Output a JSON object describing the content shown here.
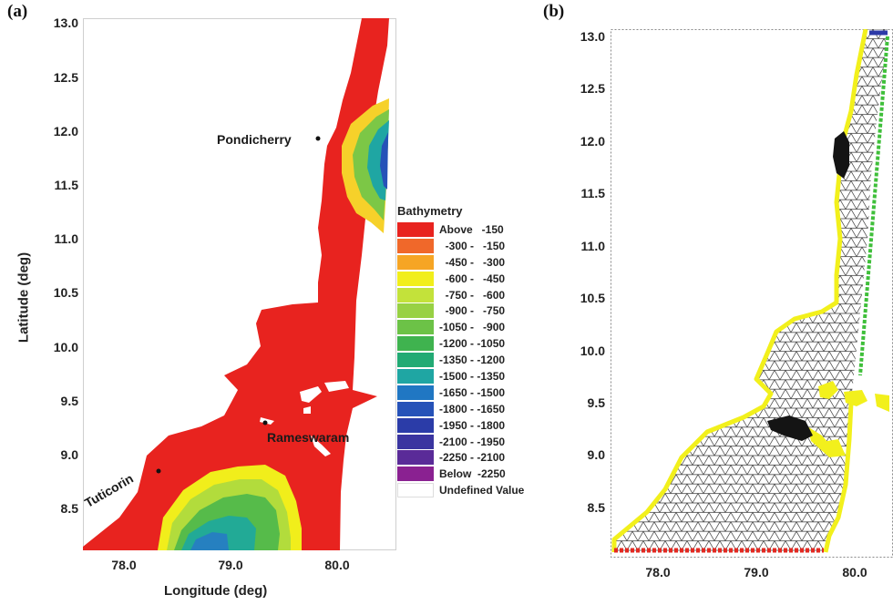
{
  "panel_a": {
    "label": "(a)",
    "y_ticks": [
      "13.0",
      "12.5",
      "12.0",
      "11.5",
      "11.0",
      "10.5",
      "10.0",
      "9.5",
      "9.0",
      "8.5"
    ],
    "x_ticks": [
      "78.0",
      "79.0",
      "80.0"
    ],
    "y_title": "Latitude (deg)",
    "x_title": "Longitude (deg)",
    "places": {
      "pondicherry": "Pondicherry",
      "rameswaram": "Rameswaram",
      "tuticorin": "Tuticorin"
    }
  },
  "legend": {
    "title": "Bathymetry",
    "items": [
      {
        "label": "Above   -150",
        "color": "#e8231f"
      },
      {
        "label": "  -300 -   -150",
        "color": "#f0682a"
      },
      {
        "label": "  -450 -   -300",
        "color": "#f6a524"
      },
      {
        "label": "  -600 -   -450",
        "color": "#f1ee1b"
      },
      {
        "label": "  -750 -   -600",
        "color": "#c3e23a"
      },
      {
        "label": "  -900 -   -750",
        "color": "#98d144"
      },
      {
        "label": "-1050 -   -900",
        "color": "#6cc247"
      },
      {
        "label": "-1200 - -1050",
        "color": "#3fb34f"
      },
      {
        "label": "-1350 - -1200",
        "color": "#22aa74"
      },
      {
        "label": "-1500 - -1350",
        "color": "#1fa6a3"
      },
      {
        "label": "-1650 - -1500",
        "color": "#2077c3"
      },
      {
        "label": "-1800 - -1650",
        "color": "#2652b8"
      },
      {
        "label": "-1950 - -1800",
        "color": "#2b3ca8"
      },
      {
        "label": "-2100 - -1950",
        "color": "#3a35a0"
      },
      {
        "label": "-2250 - -2100",
        "color": "#5a2b98"
      },
      {
        "label": "Below  -2250",
        "color": "#8a2191"
      },
      {
        "label": "Undefined Value",
        "color": "#ffffff"
      }
    ]
  },
  "panel_b": {
    "label": "(b)",
    "y_ticks": [
      "13.0",
      "12.5",
      "12.0",
      "11.5",
      "11.0",
      "10.5",
      "10.0",
      "9.5",
      "9.0",
      "8.5"
    ],
    "x_ticks": [
      "78.0",
      "79.0",
      "80.0"
    ]
  },
  "colors": {
    "land_red": "#e8231f",
    "mesh_line": "#3a3a3a",
    "boundary_yellow": "#f2f01c",
    "boundary_red": "#e32a22",
    "boundary_green": "#3fbf3a",
    "boundary_blue": "#2d3aa8"
  }
}
